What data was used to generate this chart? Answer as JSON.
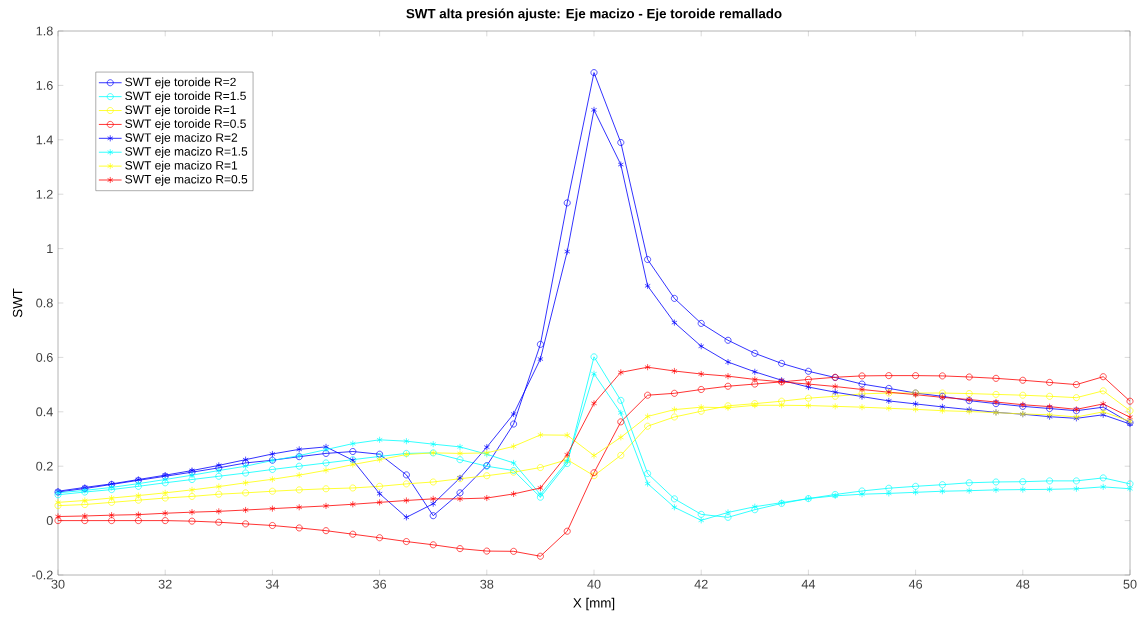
{
  "chart_data": {
    "type": "line",
    "title": "SWT alta presión ajuste: Eje macizo - Eje toroide remallado",
    "xlabel": "X [mm]",
    "ylabel": "SWT",
    "x": [
      30,
      30.5,
      31,
      31.5,
      32,
      32.5,
      33,
      33.5,
      34,
      34.5,
      35,
      35.5,
      36,
      36.5,
      37,
      37.5,
      38,
      38.5,
      39,
      39.5,
      40,
      40.5,
      41,
      41.5,
      42,
      42.5,
      43,
      43.5,
      44,
      44.5,
      45,
      45.5,
      46,
      46.5,
      47,
      47.5,
      48,
      48.5,
      49,
      49.5,
      50
    ],
    "series": [
      {
        "name": "SWT eje toroide R=2",
        "color": "#0000ff",
        "marker": "circle",
        "values": [
          0.105,
          0.118,
          0.133,
          0.148,
          0.163,
          0.178,
          0.194,
          0.212,
          0.222,
          0.235,
          0.247,
          0.254,
          0.244,
          0.168,
          0.018,
          0.102,
          0.202,
          0.355,
          0.648,
          1.168,
          1.647,
          1.39,
          0.96,
          0.817,
          0.725,
          0.663,
          0.615,
          0.578,
          0.549,
          0.526,
          0.502,
          0.486,
          0.469,
          0.457,
          0.441,
          0.43,
          0.42,
          0.412,
          0.404,
          0.417,
          0.36
        ]
      },
      {
        "name": "SWT eje toroide R=1.5",
        "color": "#00ffff",
        "marker": "circle",
        "values": [
          0.095,
          0.105,
          0.114,
          0.126,
          0.139,
          0.151,
          0.163,
          0.175,
          0.188,
          0.2,
          0.212,
          0.224,
          0.236,
          0.247,
          0.249,
          0.224,
          0.2,
          0.184,
          0.086,
          0.21,
          0.602,
          0.442,
          0.173,
          0.08,
          0.023,
          0.012,
          0.04,
          0.063,
          0.081,
          0.096,
          0.109,
          0.119,
          0.126,
          0.132,
          0.139,
          0.142,
          0.143,
          0.146,
          0.146,
          0.157,
          0.135
        ]
      },
      {
        "name": "SWT eje toroide R=1",
        "color": "#ffff00",
        "marker": "circle",
        "values": [
          0.055,
          0.059,
          0.067,
          0.075,
          0.083,
          0.089,
          0.097,
          0.102,
          0.108,
          0.113,
          0.117,
          0.12,
          0.126,
          0.135,
          0.142,
          0.154,
          0.165,
          0.178,
          0.195,
          0.224,
          0.165,
          0.24,
          0.347,
          0.381,
          0.402,
          0.422,
          0.43,
          0.439,
          0.45,
          0.457,
          0.466,
          0.469,
          0.469,
          0.469,
          0.467,
          0.464,
          0.461,
          0.457,
          0.452,
          0.477,
          0.404
        ]
      },
      {
        "name": "SWT eje toroide R=0.5",
        "color": "#ff0000",
        "marker": "circle",
        "values": [
          0.0,
          0.0,
          0.0,
          0.0,
          0.0,
          -0.002,
          -0.006,
          -0.012,
          -0.018,
          -0.027,
          -0.037,
          -0.05,
          -0.063,
          -0.077,
          -0.089,
          -0.103,
          -0.112,
          -0.113,
          -0.131,
          -0.039,
          0.176,
          0.363,
          0.461,
          0.468,
          0.482,
          0.494,
          0.502,
          0.51,
          0.519,
          0.527,
          0.532,
          0.533,
          0.533,
          0.532,
          0.528,
          0.523,
          0.516,
          0.508,
          0.5,
          0.529,
          0.439
        ]
      },
      {
        "name": "SWT eje macizo R=2",
        "color": "#0000ff",
        "marker": "cross",
        "values": [
          0.108,
          0.122,
          0.135,
          0.151,
          0.167,
          0.184,
          0.203,
          0.224,
          0.245,
          0.262,
          0.271,
          0.222,
          0.099,
          0.012,
          0.062,
          0.157,
          0.27,
          0.392,
          0.594,
          0.989,
          1.51,
          1.309,
          0.863,
          0.728,
          0.641,
          0.583,
          0.547,
          0.516,
          0.491,
          0.472,
          0.456,
          0.44,
          0.429,
          0.418,
          0.408,
          0.398,
          0.391,
          0.382,
          0.376,
          0.389,
          0.355
        ]
      },
      {
        "name": "SWT eje macizo R=1.5",
        "color": "#00ffff",
        "marker": "cross",
        "values": [
          0.102,
          0.111,
          0.122,
          0.136,
          0.151,
          0.167,
          0.184,
          0.2,
          0.221,
          0.239,
          0.261,
          0.283,
          0.297,
          0.292,
          0.281,
          0.271,
          0.244,
          0.212,
          0.096,
          0.218,
          0.54,
          0.396,
          0.136,
          0.049,
          0.001,
          0.03,
          0.051,
          0.066,
          0.081,
          0.091,
          0.097,
          0.1,
          0.104,
          0.108,
          0.11,
          0.113,
          0.114,
          0.115,
          0.117,
          0.124,
          0.117
        ]
      },
      {
        "name": "SWT eje macizo R=1",
        "color": "#ffff00",
        "marker": "cross",
        "values": [
          0.067,
          0.074,
          0.083,
          0.092,
          0.102,
          0.113,
          0.125,
          0.139,
          0.152,
          0.167,
          0.185,
          0.206,
          0.224,
          0.243,
          0.249,
          0.247,
          0.249,
          0.273,
          0.315,
          0.314,
          0.239,
          0.306,
          0.383,
          0.408,
          0.417,
          0.415,
          0.424,
          0.424,
          0.423,
          0.42,
          0.417,
          0.413,
          0.409,
          0.404,
          0.401,
          0.397,
          0.392,
          0.389,
          0.381,
          0.4,
          0.365
        ]
      },
      {
        "name": "SWT eje macizo R=0.5",
        "color": "#ff0000",
        "marker": "cross",
        "values": [
          0.015,
          0.017,
          0.02,
          0.022,
          0.027,
          0.031,
          0.034,
          0.039,
          0.044,
          0.049,
          0.054,
          0.06,
          0.067,
          0.074,
          0.08,
          0.08,
          0.083,
          0.098,
          0.12,
          0.242,
          0.431,
          0.545,
          0.564,
          0.55,
          0.539,
          0.531,
          0.519,
          0.51,
          0.502,
          0.493,
          0.482,
          0.472,
          0.463,
          0.453,
          0.445,
          0.436,
          0.426,
          0.419,
          0.409,
          0.429,
          0.38
        ]
      }
    ],
    "xlim": [
      30,
      50
    ],
    "ylim": [
      -0.2,
      1.8
    ],
    "xticks": [
      30,
      32,
      34,
      36,
      38,
      40,
      42,
      44,
      46,
      48,
      50
    ],
    "yticks": [
      -0.2,
      0,
      0.2,
      0.4,
      0.6,
      0.8,
      1,
      1.2,
      1.4,
      1.6,
      1.8
    ],
    "legend": "top left",
    "grid": false,
    "line_style": "solid"
  }
}
